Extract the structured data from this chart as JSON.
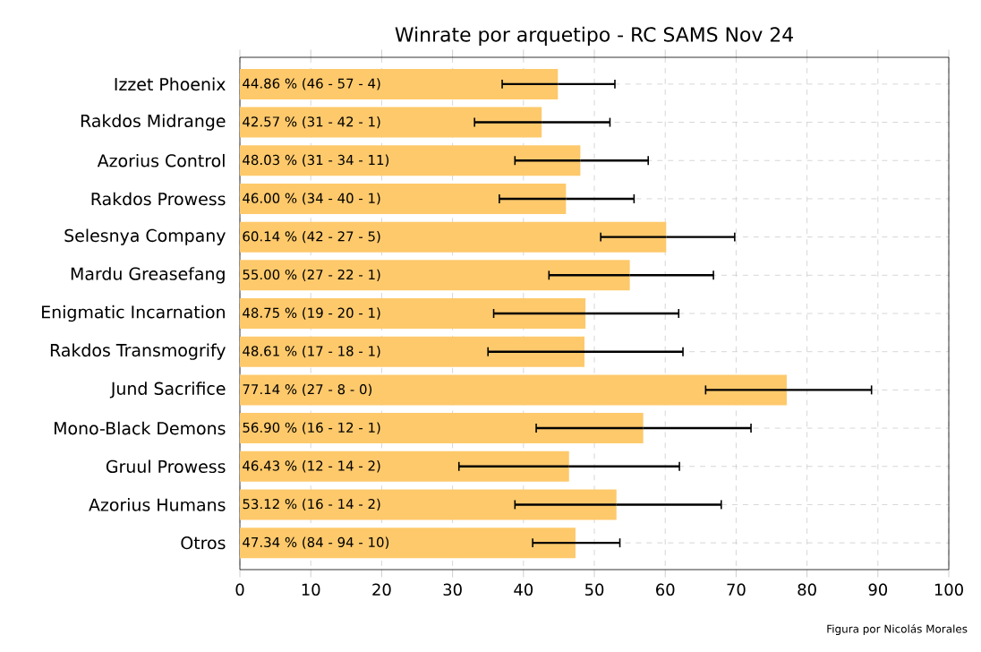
{
  "chart_data": {
    "type": "bar",
    "orientation": "horizontal",
    "title": "Winrate por arquetipo - RC SAMS Nov 24",
    "categories": [
      "Izzet Phoenix",
      "Rakdos Midrange",
      "Azorius Control",
      "Rakdos Prowess",
      "Selesnya Company",
      "Mardu Greasefang",
      "Enigmatic Incarnation",
      "Rakdos Transmogrify",
      "Jund Sacrifice",
      "Mono-Black Demons",
      "Gruul Prowess",
      "Azorius Humans",
      "Otros"
    ],
    "values": [
      44.86,
      42.57,
      48.03,
      46.0,
      60.14,
      55.0,
      48.75,
      48.61,
      77.14,
      56.9,
      46.43,
      53.12,
      47.34
    ],
    "errors": [
      [
        37.0,
        52.9
      ],
      [
        33.1,
        52.2
      ],
      [
        38.8,
        57.6
      ],
      [
        36.6,
        55.6
      ],
      [
        50.9,
        69.8
      ],
      [
        43.6,
        66.8
      ],
      [
        35.8,
        61.9
      ],
      [
        35.0,
        62.5
      ],
      [
        65.7,
        89.1
      ],
      [
        41.8,
        72.1
      ],
      [
        30.9,
        62.0
      ],
      [
        38.8,
        67.9
      ],
      [
        41.3,
        53.6
      ]
    ],
    "value_labels": [
      "44.86 %  (46 - 57 - 4)",
      "42.57 %  (31 - 42 - 1)",
      "48.03 %  (31 - 34 - 11)",
      "46.00 %  (34 - 40 - 1)",
      "60.14 %  (42 - 27 - 5)",
      "55.00 %  (27 - 22 - 1)",
      "48.75 %  (19 - 20 - 1)",
      "48.61 %  (17 - 18 - 1)",
      "77.14 %  (27 - 8 - 0)",
      "56.90 %  (16 - 12 - 1)",
      "46.43 %  (12 - 14 - 2)",
      "53.12 %  (16 - 14 - 2)",
      "47.34 %  (84 - 94 - 10)"
    ],
    "color": "#fec96b",
    "xlim": [
      0,
      100
    ],
    "xticks": [
      0,
      10,
      20,
      30,
      40,
      50,
      60,
      70,
      80,
      90,
      100
    ],
    "grid": true,
    "annotations": [
      "Figura por Nicolás Morales"
    ]
  }
}
